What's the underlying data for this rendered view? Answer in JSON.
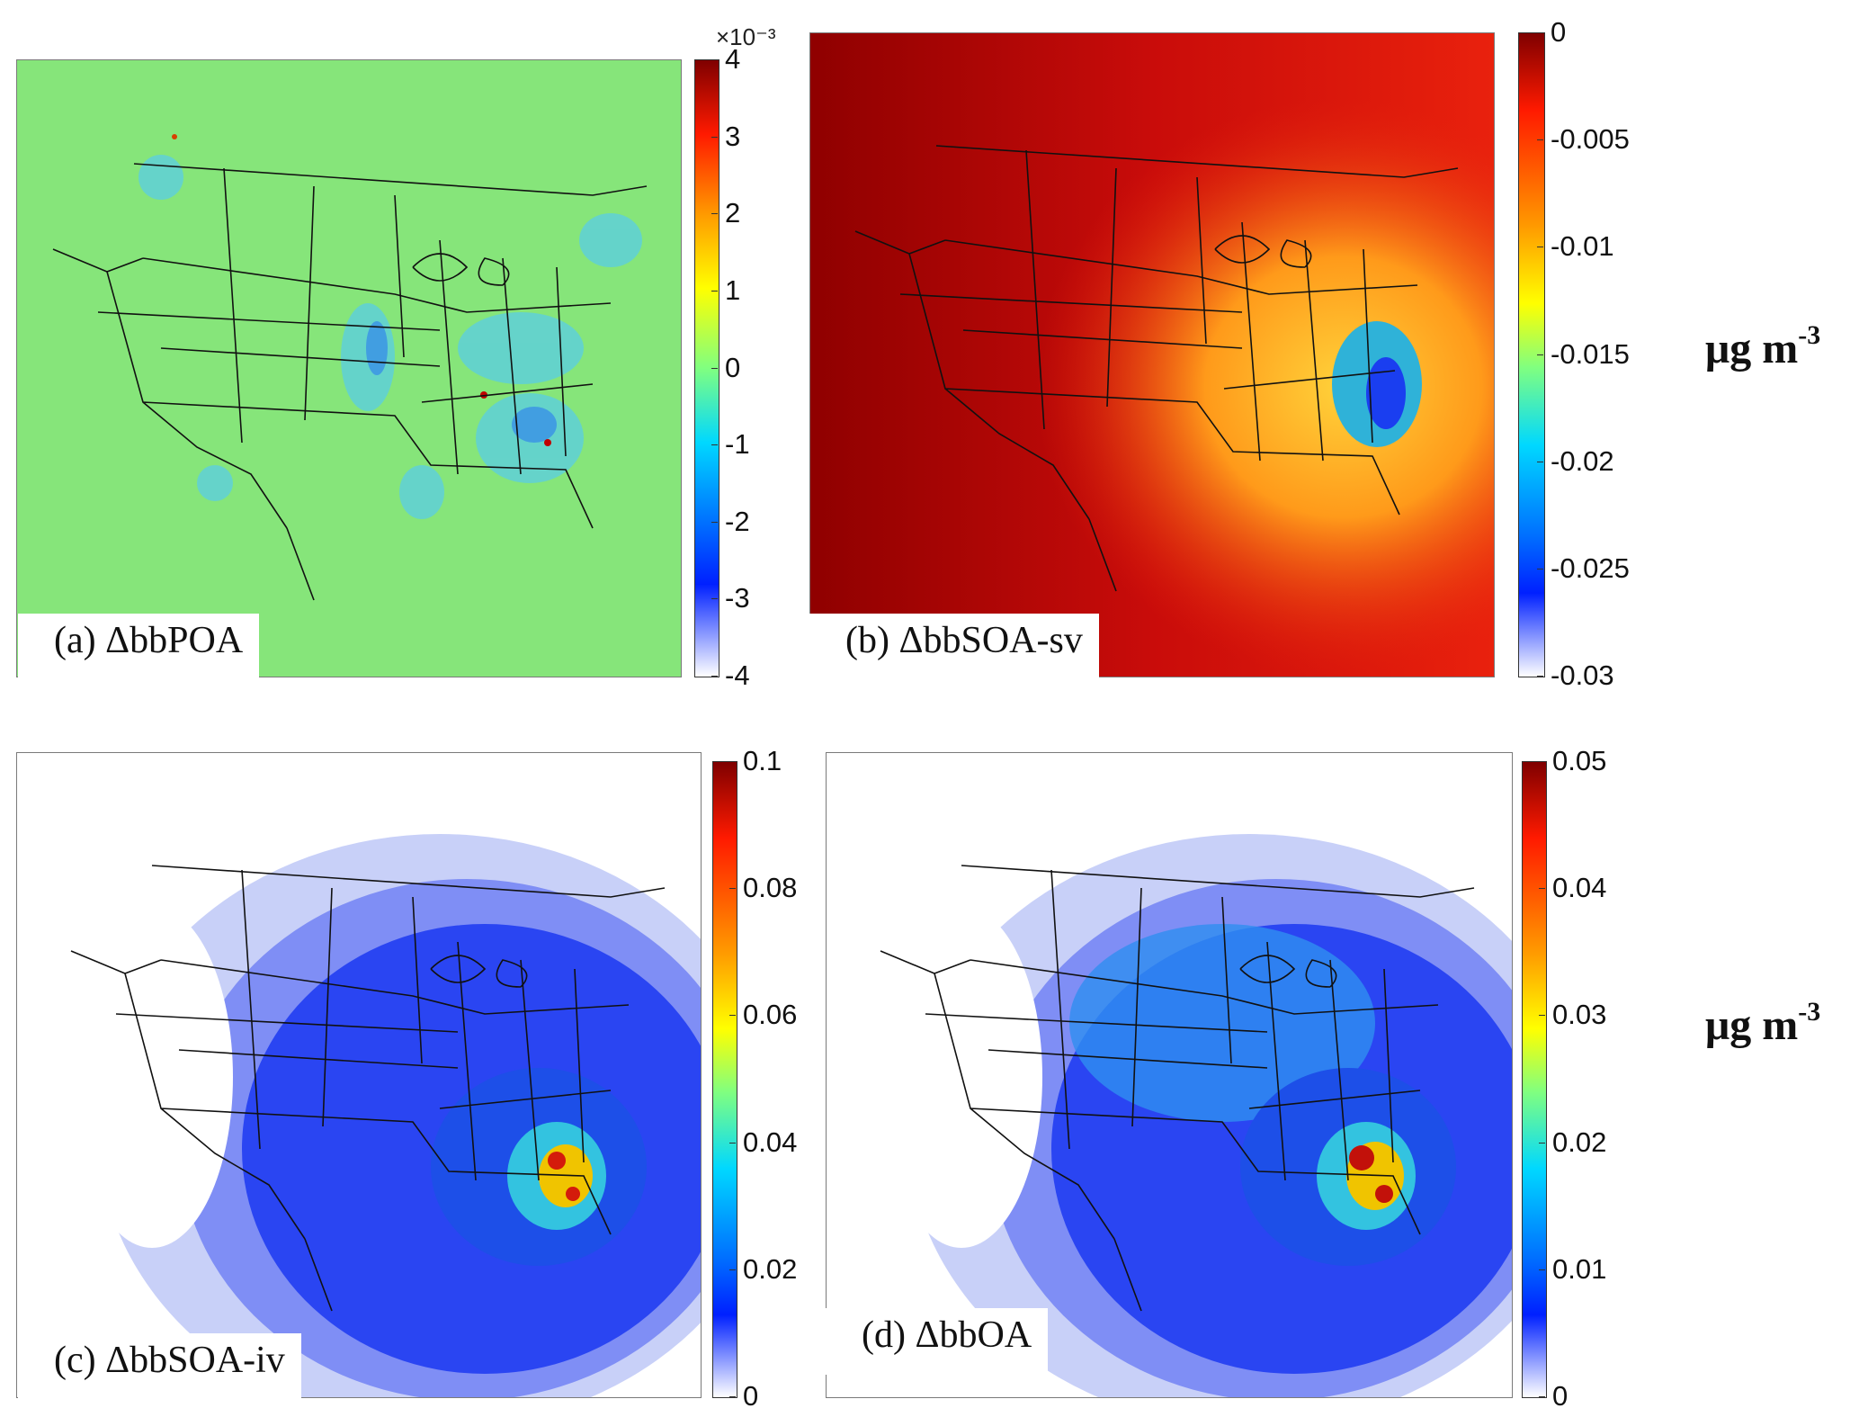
{
  "panels": [
    {
      "id": "a",
      "label": "(a) ΔbbPOA",
      "scheme": "poa"
    },
    {
      "id": "b",
      "label": "(b) ΔbbSOA-sv",
      "scheme": "sv"
    },
    {
      "id": "c",
      "label": "(c) ΔbbSOA-iv",
      "scheme": "iv"
    },
    {
      "id": "d",
      "label": "(d) ΔbbOA",
      "scheme": "oa"
    }
  ],
  "colorbars": [
    {
      "panel": "a",
      "exponent": "×10⁻³",
      "min": -4,
      "max": 4,
      "ticks": [
        "4",
        "3",
        "2",
        "1",
        "0",
        "-1",
        "-2",
        "-3",
        "-4"
      ],
      "colormap": "parula-jet-white-low"
    },
    {
      "panel": "b",
      "min": -0.03,
      "max": 0,
      "ticks": [
        "0",
        "-0.005",
        "-0.01",
        "-0.015",
        "-0.02",
        "-0.025",
        "-0.03"
      ],
      "colormap": "jet-white-low"
    },
    {
      "panel": "c",
      "min": 0,
      "max": 0.1,
      "ticks": [
        "0.1",
        "0.08",
        "0.06",
        "0.04",
        "0.02",
        "0"
      ],
      "colormap": "jet-white-low"
    },
    {
      "panel": "d",
      "min": 0,
      "max": 0.05,
      "ticks": [
        "0.05",
        "0.04",
        "0.03",
        "0.02",
        "0.01",
        "0"
      ],
      "colormap": "jet-white-low"
    }
  ],
  "units": [
    {
      "text": "μg m",
      "sup": "-3"
    },
    {
      "text": "μg m",
      "sup": "-3"
    }
  ],
  "colors": {
    "dark_red": "#7f0000",
    "red": "#e41a1c",
    "orange": "#ff8c00",
    "yellow": "#ffff00",
    "green": "#7fe07f",
    "cyan": "#00c8ff",
    "blue": "#0033ff",
    "white": "#ffffff"
  }
}
